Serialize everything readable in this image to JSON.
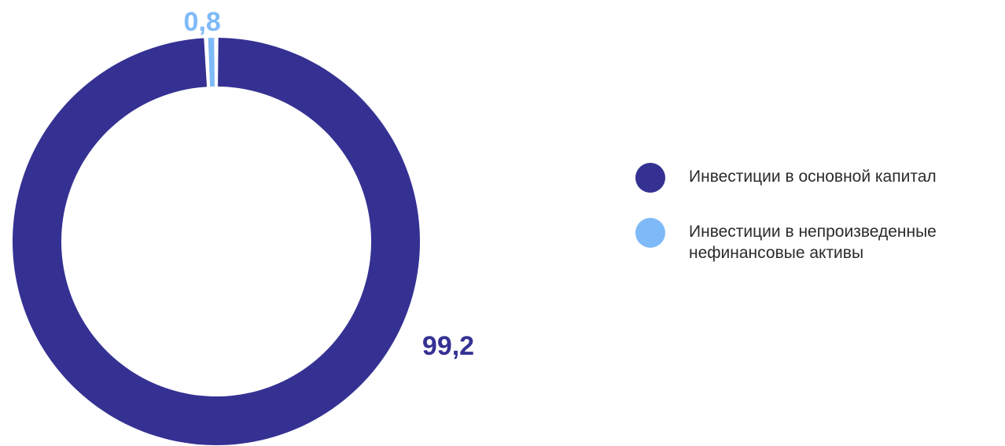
{
  "chart_data": {
    "type": "pie",
    "donut": true,
    "categories": [
      "Инвестиции в основной капитал",
      "Инвестиции в непроизведенные нефинансовые активы"
    ],
    "values": [
      99.2,
      0.8
    ],
    "data_labels": [
      "99,2",
      "0,8"
    ],
    "colors": [
      "#353193",
      "#7fbaf8"
    ],
    "legend_position": "right"
  }
}
